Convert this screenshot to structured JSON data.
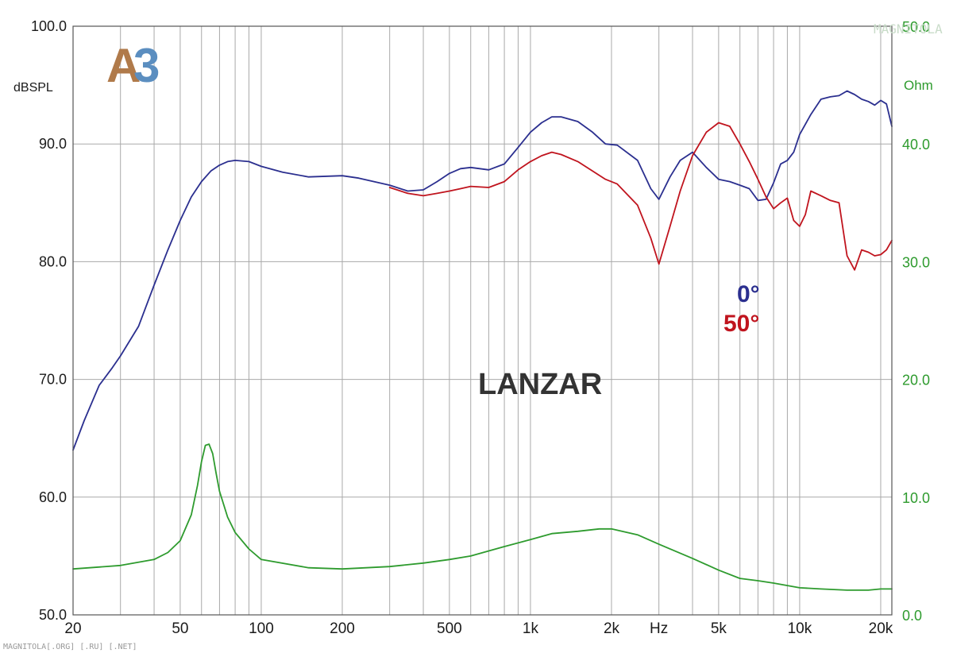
{
  "chart_data": {
    "type": "line",
    "title": "",
    "brand_label": "LANZAR",
    "logo": {
      "text_a": "A",
      "text_b": "3",
      "color_a": "#b07a4a",
      "color_b": "#5b8ec0"
    },
    "x_axis": {
      "scale": "log",
      "range": [
        20,
        22000
      ],
      "tick_values": [
        20,
        50,
        100,
        200,
        500,
        1000,
        2000,
        3000,
        5000,
        10000,
        20000
      ],
      "tick_labels": [
        "20",
        "50",
        "100",
        "200",
        "500",
        "1k",
        "2k",
        "Hz",
        "5k",
        "10k",
        "20k"
      ]
    },
    "y_left": {
      "label": "dBSPL",
      "range": [
        50,
        100
      ],
      "tick_values": [
        50,
        60,
        70,
        80,
        90,
        100
      ],
      "tick_labels": [
        "50.0",
        "60.0",
        "70.0",
        "80.0",
        "90.0",
        "100.0"
      ]
    },
    "y_right": {
      "label": "Ohm",
      "range": [
        0,
        50
      ],
      "tick_values": [
        0,
        10,
        20,
        30,
        40,
        50
      ],
      "tick_labels": [
        "0.0",
        "10.0",
        "20.0",
        "30.0",
        "40.0",
        "50.0"
      ],
      "color": "#2e9b2e"
    },
    "grid": true,
    "series": [
      {
        "name": "0°",
        "axis": "left",
        "color": "#2b2f8f",
        "x": [
          20,
          22,
          25,
          28,
          30,
          35,
          40,
          45,
          50,
          55,
          60,
          65,
          70,
          75,
          80,
          90,
          100,
          120,
          150,
          200,
          230,
          300,
          350,
          400,
          450,
          500,
          550,
          600,
          700,
          800,
          900,
          1000,
          1100,
          1200,
          1300,
          1500,
          1700,
          1900,
          2100,
          2500,
          2800,
          3000,
          3300,
          3600,
          4000,
          4500,
          5000,
          5500,
          6000,
          6500,
          7000,
          7500,
          8000,
          8500,
          9000,
          9500,
          10000,
          11000,
          12000,
          13000,
          14000,
          15000,
          16000,
          17000,
          18000,
          19000,
          20000,
          21000,
          22000
        ],
        "y": [
          64.0,
          66.5,
          69.5,
          71.0,
          72.0,
          74.5,
          78.0,
          81.0,
          83.5,
          85.5,
          86.8,
          87.7,
          88.2,
          88.5,
          88.6,
          88.5,
          88.1,
          87.6,
          87.2,
          87.3,
          87.1,
          86.5,
          86.0,
          86.1,
          86.8,
          87.5,
          87.9,
          88.0,
          87.8,
          88.3,
          89.7,
          91.0,
          91.8,
          92.3,
          92.3,
          91.9,
          91.0,
          90.0,
          89.9,
          88.6,
          86.2,
          85.3,
          87.2,
          88.6,
          89.3,
          88.0,
          87.0,
          86.8,
          86.5,
          86.2,
          85.2,
          85.3,
          86.7,
          88.3,
          88.6,
          89.3,
          90.8,
          92.5,
          93.8,
          94.0,
          94.1,
          94.5,
          94.2,
          93.8,
          93.6,
          93.3,
          93.7,
          93.4,
          91.5
        ]
      },
      {
        "name": "50°",
        "axis": "left",
        "color": "#c0141e",
        "x": [
          300,
          350,
          400,
          450,
          500,
          550,
          600,
          700,
          800,
          900,
          1000,
          1100,
          1200,
          1300,
          1500,
          1700,
          1900,
          2100,
          2500,
          2800,
          3000,
          3300,
          3600,
          4000,
          4500,
          5000,
          5500,
          6000,
          6500,
          7000,
          7500,
          8000,
          8500,
          9000,
          9500,
          10000,
          10500,
          11000,
          12000,
          13000,
          14000,
          15000,
          16000,
          17000,
          18000,
          19000,
          20000,
          21000,
          22000
        ],
        "y": [
          86.3,
          85.8,
          85.6,
          85.8,
          86.0,
          86.2,
          86.4,
          86.3,
          86.8,
          87.8,
          88.5,
          89.0,
          89.3,
          89.1,
          88.5,
          87.7,
          87.0,
          86.6,
          84.8,
          82.0,
          79.8,
          83.0,
          86.0,
          89.0,
          91.0,
          91.8,
          91.5,
          90.0,
          88.5,
          87.0,
          85.5,
          84.5,
          85.0,
          85.4,
          83.5,
          83.0,
          84.0,
          86.0,
          85.6,
          85.2,
          85.0,
          80.5,
          79.3,
          81.0,
          80.8,
          80.5,
          80.6,
          81.0,
          81.8
        ]
      },
      {
        "name": "",
        "axis": "right",
        "color": "#2e9b2e",
        "x": [
          20,
          30,
          40,
          45,
          50,
          55,
          58,
          60,
          62,
          64,
          66,
          68,
          70,
          75,
          80,
          90,
          100,
          150,
          200,
          300,
          400,
          500,
          600,
          800,
          1000,
          1200,
          1500,
          1800,
          2000,
          2500,
          3000,
          4000,
          5000,
          6000,
          7000,
          8000,
          10000,
          12000,
          15000,
          18000,
          20000,
          22000
        ],
        "y": [
          3.9,
          4.2,
          4.7,
          5.3,
          6.3,
          8.5,
          11.0,
          13.0,
          14.4,
          14.5,
          13.7,
          12.0,
          10.5,
          8.3,
          7.0,
          5.6,
          4.7,
          4.0,
          3.9,
          4.1,
          4.4,
          4.7,
          5.0,
          5.8,
          6.4,
          6.9,
          7.1,
          7.3,
          7.3,
          6.8,
          6.0,
          4.8,
          3.8,
          3.1,
          2.9,
          2.7,
          2.3,
          2.2,
          2.1,
          2.1,
          2.2,
          2.2
        ]
      }
    ],
    "legend": [
      {
        "text": "0°",
        "color": "#2b2f8f"
      },
      {
        "text": "50°",
        "color": "#c0141e"
      }
    ]
  },
  "watermark": {
    "bottom_left": "MAGNITOLA[.ORG] [.RU] [.NET]",
    "top_right": "MAGNITOLA"
  }
}
